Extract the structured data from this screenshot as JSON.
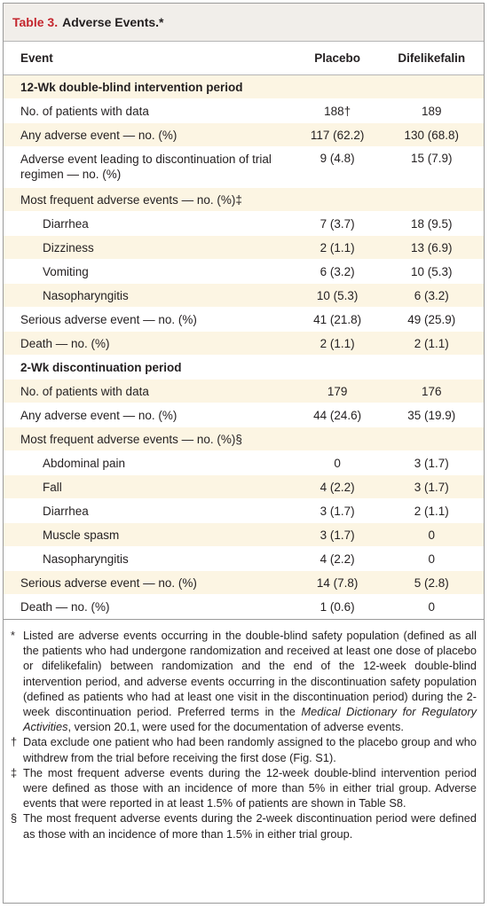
{
  "title": {
    "label": "Table 3.",
    "text": "Adverse Events.*"
  },
  "table": {
    "headers": [
      "Event",
      "Placebo",
      "Difelikefalin"
    ],
    "sections": [
      {
        "title": "12-Wk double-blind intervention period",
        "rows": [
          [
            "No. of patients with data",
            "188†",
            "189"
          ],
          [
            "Any adverse event — no. (%)",
            "117 (62.2)",
            "130 (68.8)"
          ],
          [
            "Adverse event leading to discontinuation of trial regimen — no. (%)",
            "9 (4.8)",
            "15 (7.9)"
          ],
          {
            "label": "Most frequent adverse events — no. (%)‡",
            "rows": [
              [
                "Diarrhea",
                "7 (3.7)",
                "18 (9.5)"
              ],
              [
                "Dizziness",
                "2 (1.1)",
                "13 (6.9)"
              ],
              [
                "Vomiting",
                "6 (3.2)",
                "10 (5.3)"
              ],
              [
                "Nasopharyngitis",
                "10 (5.3)",
                "6 (3.2)"
              ]
            ]
          },
          [
            "Serious adverse event — no. (%)",
            "41 (21.8)",
            "49 (25.9)"
          ],
          [
            "Death — no. (%)",
            "2 (1.1)",
            "2 (1.1)"
          ]
        ]
      },
      {
        "title": "2-Wk discontinuation period",
        "rows": [
          [
            "No. of patients with data",
            "179",
            "176"
          ],
          [
            "Any adverse event — no. (%)",
            "44 (24.6)",
            "35 (19.9)"
          ],
          {
            "label": "Most frequent adverse events — no. (%)§",
            "rows": [
              [
                "Abdominal pain",
                "0",
                "3 (1.7)"
              ],
              [
                "Fall",
                "4 (2.2)",
                "3 (1.7)"
              ],
              [
                "Diarrhea",
                "3 (1.7)",
                "2 (1.1)"
              ],
              [
                "Muscle spasm",
                "3 (1.7)",
                "0"
              ],
              [
                "Nasopharyngitis",
                "4 (2.2)",
                "0"
              ]
            ]
          },
          [
            "Serious adverse event — no. (%)",
            "14 (7.8)",
            "5 (2.8)"
          ],
          [
            "Death — no. (%)",
            "1 (0.6)",
            "0"
          ]
        ]
      }
    ]
  },
  "footnotes": [
    {
      "mark": "*",
      "text": [
        "Listed are adverse events occurring in the double-blind safety population (defined as all the patients who had undergone randomization and received at least one dose of placebo or difelikefalin) between randomization and the end of the 12-week double-blind intervention period, and adverse events occurring in the discontinuation safety population (defined as patients who had at least one visit in the discontinuation period) during the 2-week discontinuation period. Preferred terms in the ",
        "Medical Dictionary for Regulatory Activities",
        ", version 20.1, were used for the documentation of adverse events."
      ]
    },
    {
      "mark": "†",
      "text": [
        "Data exclude one patient who had been randomly assigned to the placebo group and who withdrew from the trial before receiving the first dose (Fig. S1)."
      ]
    },
    {
      "mark": "‡",
      "text": [
        "The most frequent adverse events during the 12-week double-blind intervention period were defined as those with an incidence of more than 5% in either trial group. Adverse events that were reported in at least 1.5% of patients are shown in Table S8."
      ]
    },
    {
      "mark": "§",
      "text": [
        "The most frequent adverse events during the 2-week discontinuation period were defined as those with an incidence of more than 1.5% in either trial group."
      ]
    }
  ]
}
